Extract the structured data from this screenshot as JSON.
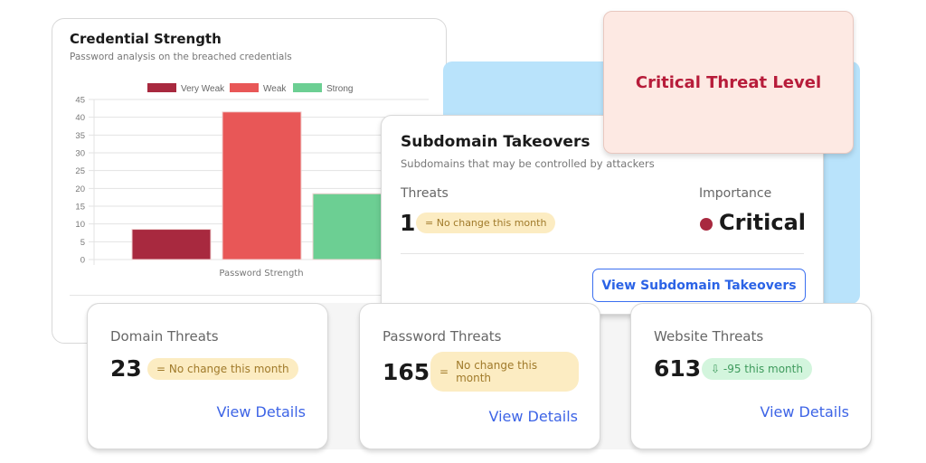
{
  "credential_card": {
    "title": "Credential Strength",
    "subtitle": "Password analysis on the breached credentials"
  },
  "chart_data": {
    "type": "bar",
    "categories": [
      "Password Strength"
    ],
    "xlabel": "Password Strength",
    "ylim": [
      0,
      45
    ],
    "yticks": [
      0,
      5,
      10,
      15,
      20,
      25,
      30,
      35,
      40,
      45
    ],
    "legend_position": "top",
    "series": [
      {
        "name": "Very Weak",
        "values": [
          8.5
        ],
        "color": "#a8293f"
      },
      {
        "name": "Weak",
        "values": [
          41.5
        ],
        "color": "#e85757"
      },
      {
        "name": "Strong",
        "values": [
          18.5
        ],
        "color": "#6ccf93"
      }
    ]
  },
  "critical_card": {
    "label": "Critical Threat Level"
  },
  "subdomain_card": {
    "title": "Subdomain Takeovers",
    "subtitle": "Subdomains that may be controlled by attackers",
    "threats_label": "Threats",
    "threats_value": "1",
    "badge": "= No change this month",
    "importance_label": "Importance",
    "importance_value": "Critical",
    "importance_color": "#a8293f",
    "button": "View Subdomain Takeovers"
  },
  "threat_cards": [
    {
      "label": "Domain Threats",
      "value": "23",
      "badge": "= No change this month",
      "link": "View Details"
    },
    {
      "label": "Password Threats",
      "value": "165",
      "badge_icon": "=",
      "badge": "No change this month",
      "link": "View Details"
    },
    {
      "label": "Website Threats",
      "value": "613",
      "badge_icon": "⇩",
      "badge": "-95 this month",
      "link": "View Details"
    }
  ]
}
